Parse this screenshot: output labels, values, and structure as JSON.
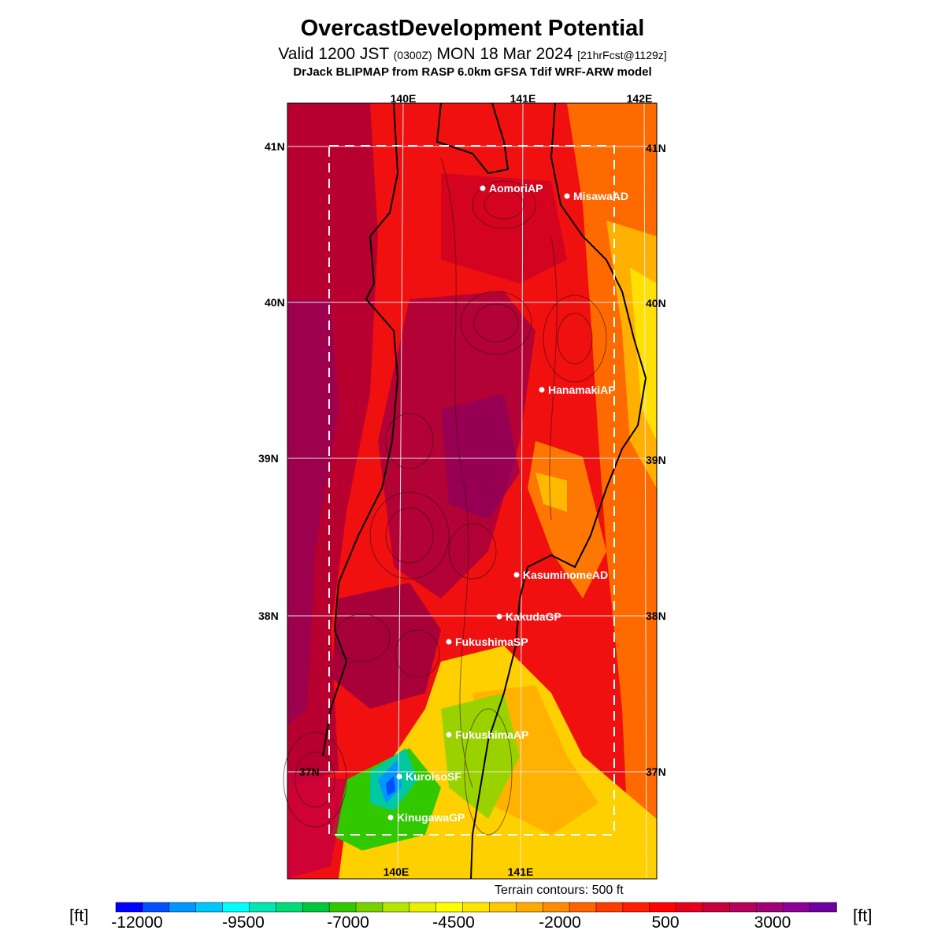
{
  "header": {
    "title": "OvercastDevelopment Potential",
    "valid_main": "Valid 1200 JST",
    "valid_utc": "(0300Z)",
    "valid_date": "MON 18 Mar 2024",
    "forecast_info": "[21hrFcst@1129z]",
    "model": "DrJack BLIPMAP from RASP 6.0km GFSA Tdif WRF-ARW model"
  },
  "map": {
    "lon_top": [
      "140E",
      "141E",
      "142E"
    ],
    "lon_bottom": [
      "140E",
      "141E"
    ],
    "lat_left": [
      "41N",
      "40N",
      "39N",
      "38N",
      "37N"
    ],
    "lat_right": [
      "41N",
      "40N",
      "39N",
      "38N",
      "37N"
    ],
    "stations": [
      "AomoriAP",
      "MisawaAD",
      "HanamakiAP",
      "KasuminomeAD",
      "KakudaGP",
      "FukushimaSP",
      "FukushimaAP",
      "KuroisoSF",
      "KinugawaGP"
    ],
    "terrain_note": "Terrain contours: 500 ft"
  },
  "colorbar": {
    "unit_left": "[ft]",
    "unit_right": "[ft]",
    "ticks": [
      "-12000",
      "-9500",
      "-7000",
      "-4500",
      "-2000",
      "500",
      "3000"
    ],
    "colors": [
      "#0000ff",
      "#0050ff",
      "#0096ff",
      "#00c8ff",
      "#00ffff",
      "#00e6b4",
      "#00dc78",
      "#00c83c",
      "#32c800",
      "#78d200",
      "#b4e600",
      "#e6f000",
      "#ffff00",
      "#ffe600",
      "#ffc800",
      "#ffaa00",
      "#ff8c00",
      "#ff6400",
      "#ff3c00",
      "#ff1e00",
      "#ff0000",
      "#e6001e",
      "#c8003c",
      "#b4005a",
      "#a00078",
      "#8c0096",
      "#6e00a0"
    ]
  }
}
